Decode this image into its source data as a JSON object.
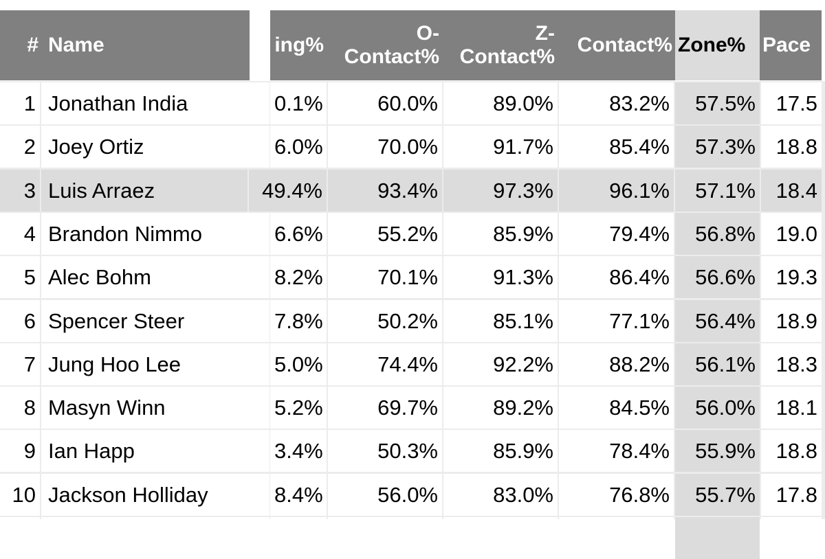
{
  "table": {
    "columns": [
      "#",
      "Name",
      "ing%",
      "O-\nContact%",
      "Z-\nContact%",
      "Contact%",
      "Zone%",
      "Pace"
    ],
    "highlighted_column": "Zone%",
    "highlighted_row": 3,
    "rows": [
      {
        "rank": "1",
        "name": "Jonathan India",
        "swing": "0.1%",
        "ocontact": "60.0%",
        "zcontact": "89.0%",
        "contact": "83.2%",
        "zone": "57.5%",
        "pace": "17.5"
      },
      {
        "rank": "2",
        "name": "Joey Ortiz",
        "swing": "6.0%",
        "ocontact": "70.0%",
        "zcontact": "91.7%",
        "contact": "85.4%",
        "zone": "57.3%",
        "pace": "18.8"
      },
      {
        "rank": "3",
        "name": "Luis Arraez",
        "swing": "49.4%",
        "ocontact": "93.4%",
        "zcontact": "97.3%",
        "contact": "96.1%",
        "zone": "57.1%",
        "pace": "18.4"
      },
      {
        "rank": "4",
        "name": "Brandon Nimmo",
        "swing": "6.6%",
        "ocontact": "55.2%",
        "zcontact": "85.9%",
        "contact": "79.4%",
        "zone": "56.8%",
        "pace": "19.0"
      },
      {
        "rank": "5",
        "name": "Alec Bohm",
        "swing": "8.2%",
        "ocontact": "70.1%",
        "zcontact": "91.3%",
        "contact": "86.4%",
        "zone": "56.6%",
        "pace": "19.3"
      },
      {
        "rank": "6",
        "name": "Spencer Steer",
        "swing": "7.8%",
        "ocontact": "50.2%",
        "zcontact": "85.1%",
        "contact": "77.1%",
        "zone": "56.4%",
        "pace": "18.9"
      },
      {
        "rank": "7",
        "name": "Jung Hoo Lee",
        "swing": "5.0%",
        "ocontact": "74.4%",
        "zcontact": "92.2%",
        "contact": "88.2%",
        "zone": "56.1%",
        "pace": "18.3"
      },
      {
        "rank": "8",
        "name": "Masyn Winn",
        "swing": "5.2%",
        "ocontact": "69.7%",
        "zcontact": "89.2%",
        "contact": "84.5%",
        "zone": "56.0%",
        "pace": "18.1"
      },
      {
        "rank": "9",
        "name": "Ian Happ",
        "swing": "3.4%",
        "ocontact": "50.3%",
        "zcontact": "85.9%",
        "contact": "78.4%",
        "zone": "55.9%",
        "pace": "18.8"
      },
      {
        "rank": "10",
        "name": "Jackson Holliday",
        "swing": "8.4%",
        "ocontact": "56.0%",
        "zcontact": "83.0%",
        "contact": "76.8%",
        "zone": "55.7%",
        "pace": "17.8"
      }
    ]
  }
}
